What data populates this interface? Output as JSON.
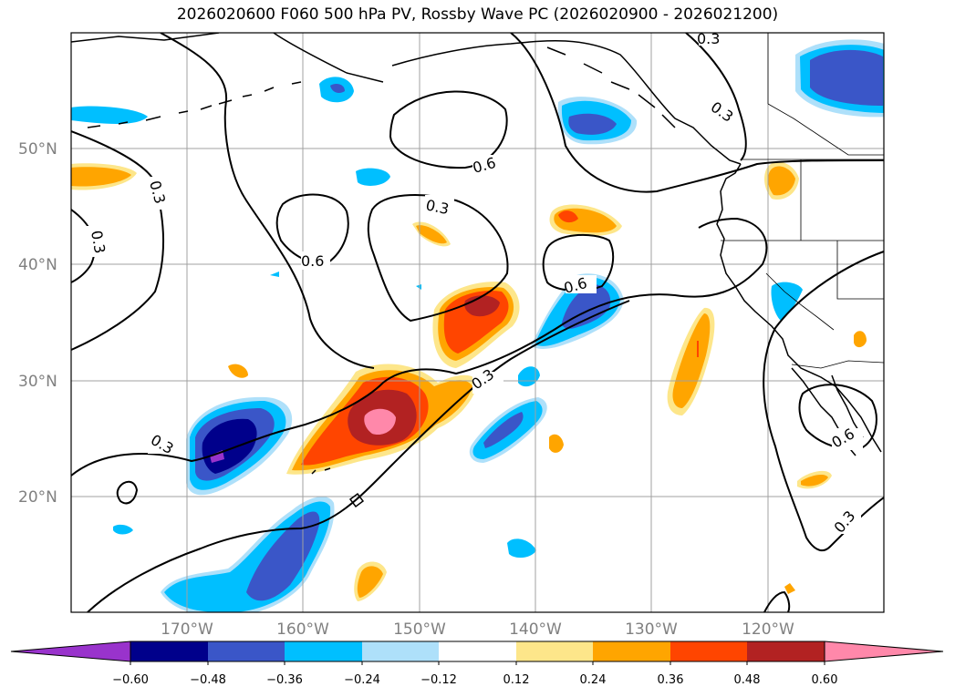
{
  "title": "2026020600 F060 500 hPa PV, Rossby Wave PC (2026020900 - 2026021200)",
  "map": {
    "lon_range": [
      -180,
      -110
    ],
    "lat_range": [
      10,
      60
    ],
    "lat_labels": [
      "50°N",
      "40°N",
      "30°N",
      "20°N"
    ],
    "lon_labels": [
      "170°W",
      "160°W",
      "150°W",
      "140°W",
      "130°W",
      "120°W"
    ],
    "contour_labels": [
      "0.3",
      "0.3",
      "0.3",
      "0.3",
      "0.6",
      "0.3",
      "0.6",
      "0.6",
      "0.3",
      "0.3",
      "0.6",
      "0.3"
    ]
  },
  "colorbar": {
    "ticks": [
      "−0.60",
      "−0.48",
      "−0.36",
      "−0.24",
      "−0.12",
      "0.12",
      "0.24",
      "0.36",
      "0.48",
      "0.60"
    ],
    "colors": [
      "#9933cc",
      "#00008b",
      "#3a56c8",
      "#00bfff",
      "#aee0fa",
      "#ffffff",
      "#fde68a",
      "#ffa500",
      "#ff4500",
      "#b22222",
      "#ff88aa"
    ]
  },
  "palette": {
    "purple": "#9933cc",
    "navy": "#00008b",
    "blue": "#3a56c8",
    "cyan": "#00bfff",
    "lightblue": "#aee0fa",
    "lightyellow": "#fde68a",
    "orange": "#ffa500",
    "red": "#ff4500",
    "darkred": "#b22222",
    "pink": "#ff88aa"
  }
}
